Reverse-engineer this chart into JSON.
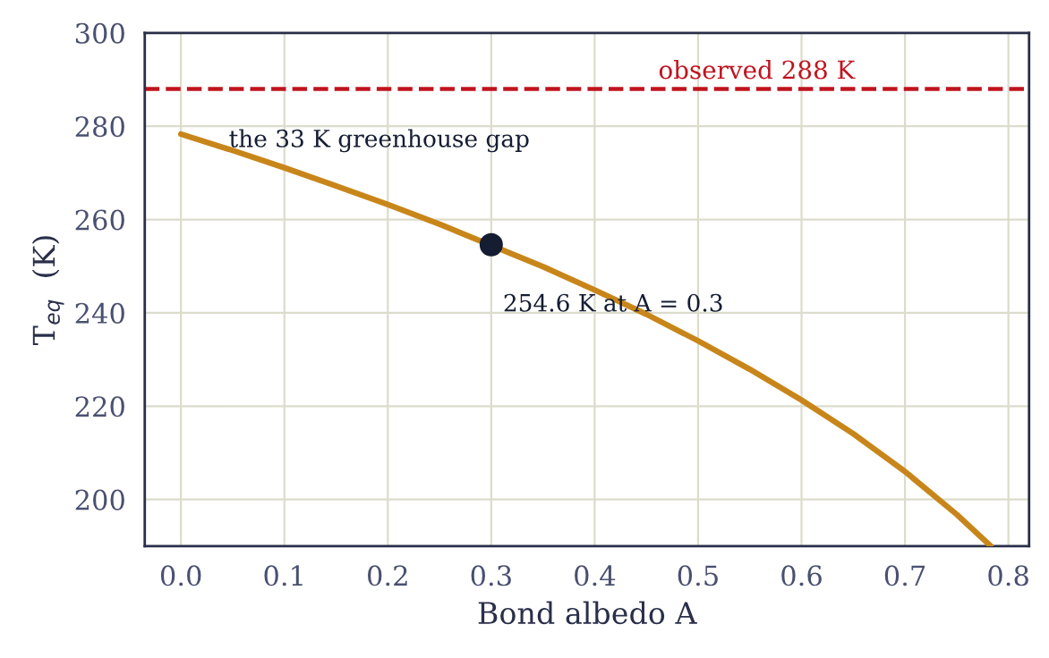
{
  "chart_data": {
    "type": "line",
    "xlabel": "Bond albedo A",
    "ylabel": "T$_{eq}$  (K)",
    "series": [
      {
        "color": "#c8861a",
        "x": [
          0,
          0.05,
          0.1,
          0.15,
          0.2,
          0.25,
          0.35,
          0.4,
          0.45,
          0.5,
          0.55,
          0.6,
          0.65,
          0.7,
          0.75,
          0.783
        ],
        "values": [
          278.3,
          274.8,
          271.1,
          267.2,
          263.2,
          259.0,
          249.9,
          244.9,
          239.7,
          234.0,
          227.9,
          221.3,
          214.1,
          206.0,
          196.8,
          190.0
        ]
      },
      {
        "type": "scatter",
        "color": "#151d33",
        "x": [
          0.3
        ],
        "values": [
          254.6
        ]
      }
    ],
    "ref_lines": [
      {
        "axis": "y",
        "value": 288,
        "label": "observed 288 K",
        "color": "#c0141e",
        "line_style": "dashed"
      }
    ],
    "annotations": [
      "the 33 K greenhouse gap",
      "254.6 K at A = 0.3"
    ],
    "xlim": [
      -0.035,
      0.82
    ],
    "ylim": [
      190,
      300
    ],
    "xticks": [
      {
        "value": 0,
        "label": "0.0"
      },
      0.1,
      0.2,
      0.3,
      0.4,
      0.5,
      0.6,
      0.7,
      0.8
    ],
    "yticks": [
      200,
      220,
      240,
      260,
      280,
      300
    ],
    "grid": true
  }
}
